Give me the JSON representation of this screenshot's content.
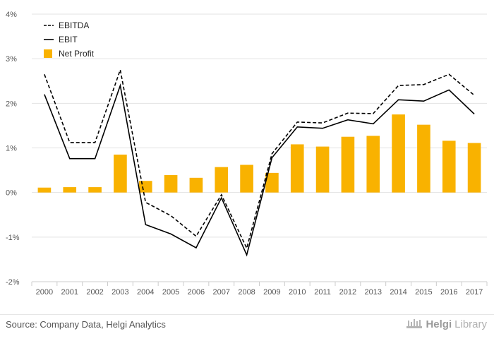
{
  "chart_data": {
    "type": "line",
    "categories": [
      "2000",
      "2001",
      "2002",
      "2003",
      "2004",
      "2005",
      "2006",
      "2007",
      "2008",
      "2009",
      "2010",
      "2011",
      "2012",
      "2013",
      "2014",
      "2015",
      "2016",
      "2017"
    ],
    "series": [
      {
        "name": "EBITDA",
        "kind": "line",
        "style": "dashed",
        "color": "#000000",
        "values": [
          2.65,
          1.12,
          1.12,
          2.75,
          -0.22,
          -0.52,
          -0.98,
          -0.05,
          -1.25,
          0.87,
          1.58,
          1.56,
          1.78,
          1.77,
          2.4,
          2.42,
          2.65,
          2.18
        ]
      },
      {
        "name": "EBIT",
        "kind": "line",
        "style": "solid",
        "color": "#000000",
        "values": [
          2.2,
          0.76,
          0.76,
          2.4,
          -0.72,
          -0.93,
          -1.24,
          -0.12,
          -1.4,
          0.78,
          1.47,
          1.44,
          1.63,
          1.54,
          2.08,
          2.05,
          2.3,
          1.76
        ]
      },
      {
        "name": "Net Profit",
        "kind": "bar",
        "color": "#f9b200",
        "values": [
          0.11,
          0.12,
          0.12,
          0.85,
          0.26,
          0.39,
          0.33,
          0.57,
          0.62,
          0.44,
          1.08,
          1.03,
          1.25,
          1.27,
          1.75,
          1.52,
          1.16,
          1.11
        ]
      }
    ],
    "y_ticks": [
      "4%",
      "3%",
      "2%",
      "1%",
      "0%",
      "-1%",
      "-2%"
    ],
    "y_tick_values": [
      4,
      3,
      2,
      1,
      0,
      -1,
      -2
    ],
    "ylim": [
      -2,
      4
    ],
    "grid": true,
    "legend_position": "top-left"
  },
  "footer": {
    "source": "Source: Company Data, Helgi Analytics",
    "brand_part1": "Helgi",
    "brand_part2": "Library"
  }
}
